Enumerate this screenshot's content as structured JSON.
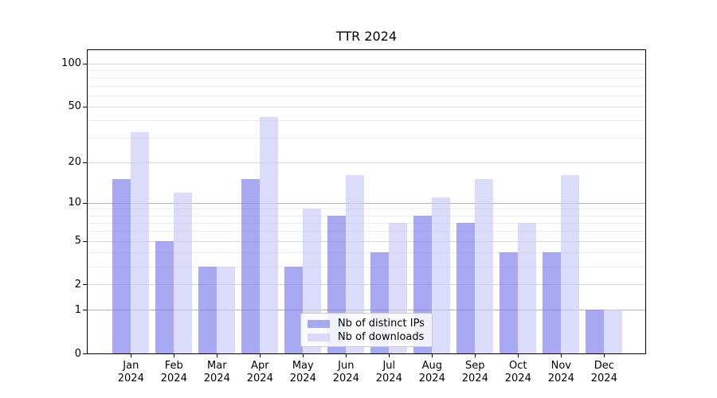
{
  "title": "TTR 2024",
  "colors": {
    "distinct_ips": "rgba(131,131,238,0.7)",
    "downloads": "rgba(204,204,248,0.7)",
    "grid_major": "#d7d7d7",
    "grid_strong": "#b2b2b2",
    "grid_minor": "#ececec"
  },
  "legend": {
    "position": "lower center",
    "items": [
      {
        "label": "Nb of distinct IPs",
        "color": "rgba(131,131,238,0.7)"
      },
      {
        "label": "Nb of downloads",
        "color": "rgba(204,204,248,0.7)"
      }
    ]
  },
  "chart_data": {
    "type": "bar",
    "title": "TTR 2024",
    "categories": [
      "Jan 2024",
      "Feb 2024",
      "Mar 2024",
      "Apr 2024",
      "May 2024",
      "Jun 2024",
      "Jul 2024",
      "Aug 2024",
      "Sep 2024",
      "Oct 2024",
      "Nov 2024",
      "Dec 2024"
    ],
    "series": [
      {
        "name": "Nb of distinct IPs",
        "color": "rgba(131,131,238,0.7)",
        "values": [
          15,
          5,
          3,
          15,
          3,
          8,
          4,
          8,
          7,
          4,
          4,
          1
        ]
      },
      {
        "name": "Nb of downloads",
        "color": "rgba(204,204,248,0.7)",
        "values": [
          33,
          12,
          3,
          42,
          9,
          16,
          7,
          11,
          15,
          7,
          16,
          1
        ]
      }
    ],
    "xlabel": "",
    "ylabel": "",
    "yscale": "log1p",
    "yticks_major": [
      0,
      1,
      2,
      5,
      10,
      20,
      50,
      100
    ],
    "yticks_strong": [
      1,
      10
    ],
    "yticks_minor": [
      3,
      4,
      6,
      7,
      8,
      9,
      30,
      40,
      60,
      70,
      80,
      90
    ],
    "ylim": [
      0,
      123
    ],
    "grid": true,
    "legend_position": "lower center"
  }
}
